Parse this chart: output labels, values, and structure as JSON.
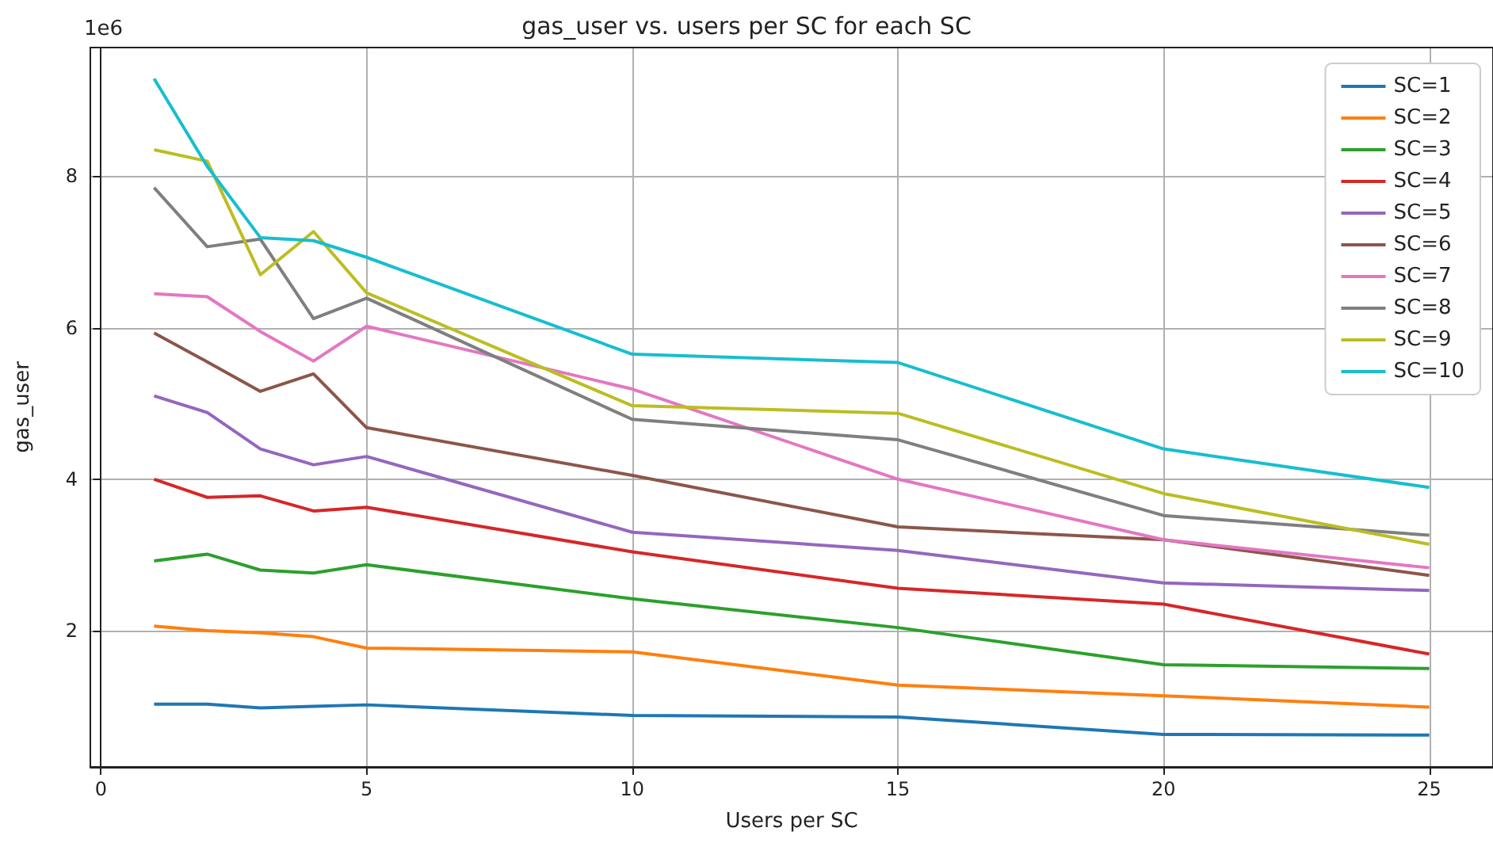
{
  "chart_data": {
    "type": "line",
    "title": "gas_user vs. users per SC for each SC",
    "xlabel": "Users per SC",
    "ylabel": "gas_user",
    "annotations": [
      "1e6"
    ],
    "x": [
      1,
      2,
      3,
      4,
      5,
      10,
      15,
      20,
      25
    ],
    "xlim": [
      -0.2,
      26.2
    ],
    "xticks": [
      0,
      5,
      10,
      15,
      20,
      25
    ],
    "ylim": [
      0.2,
      9.7
    ],
    "yticks": [
      2,
      4,
      6,
      8
    ],
    "grid": true,
    "legend": "top right",
    "marker": "none",
    "line_style": "solid",
    "series": [
      {
        "name": "SC=1",
        "color": "#1f77b4",
        "values": [
          1.03,
          1.03,
          0.98,
          1.0,
          1.02,
          0.88,
          0.86,
          0.63,
          0.62
        ]
      },
      {
        "name": "SC=2",
        "color": "#ff7f0e",
        "values": [
          2.06,
          2.0,
          1.97,
          1.92,
          1.77,
          1.72,
          1.28,
          1.14,
          0.99
        ]
      },
      {
        "name": "SC=3",
        "color": "#2ca02c",
        "values": [
          2.92,
          3.01,
          2.8,
          2.76,
          2.87,
          2.42,
          2.04,
          1.55,
          1.5
        ]
      },
      {
        "name": "SC=4",
        "color": "#d62728",
        "values": [
          4.0,
          3.76,
          3.78,
          3.58,
          3.63,
          3.04,
          2.56,
          2.35,
          1.69
        ]
      },
      {
        "name": "SC=5",
        "color": "#9467bd",
        "values": [
          5.1,
          4.88,
          4.4,
          4.19,
          4.3,
          3.3,
          3.06,
          2.63,
          2.53
        ]
      },
      {
        "name": "SC=6",
        "color": "#8c564b",
        "values": [
          5.93,
          5.55,
          5.16,
          5.39,
          4.68,
          4.05,
          3.37,
          3.2,
          2.73
        ]
      },
      {
        "name": "SC=7",
        "color": "#e377c2",
        "values": [
          6.45,
          6.41,
          5.95,
          5.56,
          6.02,
          5.19,
          4.0,
          3.2,
          2.83
        ]
      },
      {
        "name": "SC=8",
        "color": "#7f7f7f",
        "values": [
          7.85,
          7.07,
          7.17,
          6.12,
          6.39,
          4.79,
          4.52,
          3.52,
          3.26
        ]
      },
      {
        "name": "SC=9",
        "color": "#bcbd22",
        "values": [
          8.35,
          8.2,
          6.7,
          7.27,
          6.46,
          4.97,
          4.87,
          3.81,
          3.14
        ]
      },
      {
        "name": "SC=10",
        "color": "#17becf",
        "values": [
          9.29,
          8.13,
          7.19,
          7.15,
          6.93,
          5.65,
          5.54,
          4.4,
          3.89
        ]
      }
    ]
  }
}
